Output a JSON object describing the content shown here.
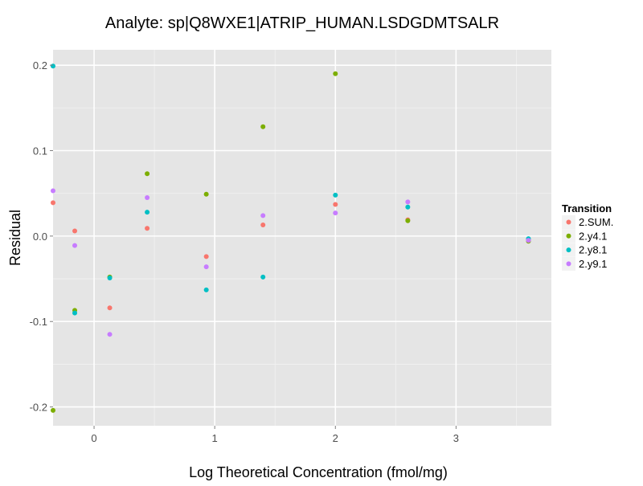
{
  "chart_data": {
    "type": "scatter",
    "title": "Analyte: sp|Q8WXE1|ATRIP_HUMAN.LSDGDMTSALR",
    "xlabel": "Log Theoretical Concentration (fmol/mg)",
    "ylabel": "Residual",
    "xlim": [
      -0.34,
      3.79
    ],
    "ylim": [
      -0.222,
      0.218
    ],
    "x_ticks": [
      0,
      1,
      2,
      3
    ],
    "x_tick_labels": [
      "0",
      "1",
      "2",
      "3"
    ],
    "y_ticks": [
      0.2,
      0.1,
      0.0,
      -0.1,
      -0.2
    ],
    "y_tick_labels": [
      "0.2",
      "0.1",
      "0.0",
      "-0.1",
      "-0.2"
    ],
    "grid": true,
    "legend": {
      "title": "Transition",
      "position": "right"
    },
    "x": [
      -0.34,
      -0.16,
      0.13,
      0.44,
      0.93,
      1.4,
      2.0,
      2.6,
      3.6
    ],
    "series": [
      {
        "name": "2.SUM.",
        "color": "#F8766D",
        "values": [
          0.039,
          0.006,
          -0.084,
          0.009,
          -0.024,
          0.013,
          0.037,
          0.019,
          -0.004
        ]
      },
      {
        "name": "2.y4.1",
        "color": "#7CAE00",
        "values": [
          -0.204,
          -0.087,
          -0.048,
          0.073,
          0.049,
          0.128,
          0.19,
          0.018,
          -0.006
        ]
      },
      {
        "name": "2.y8.1",
        "color": "#00BFC4",
        "values": [
          0.199,
          -0.09,
          -0.049,
          0.028,
          -0.063,
          -0.048,
          0.048,
          0.034,
          -0.003
        ]
      },
      {
        "name": "2.y9.1",
        "color": "#C77CFF",
        "values": [
          0.053,
          -0.011,
          -0.115,
          0.045,
          -0.036,
          0.024,
          0.027,
          0.04,
          -0.005
        ]
      }
    ]
  }
}
